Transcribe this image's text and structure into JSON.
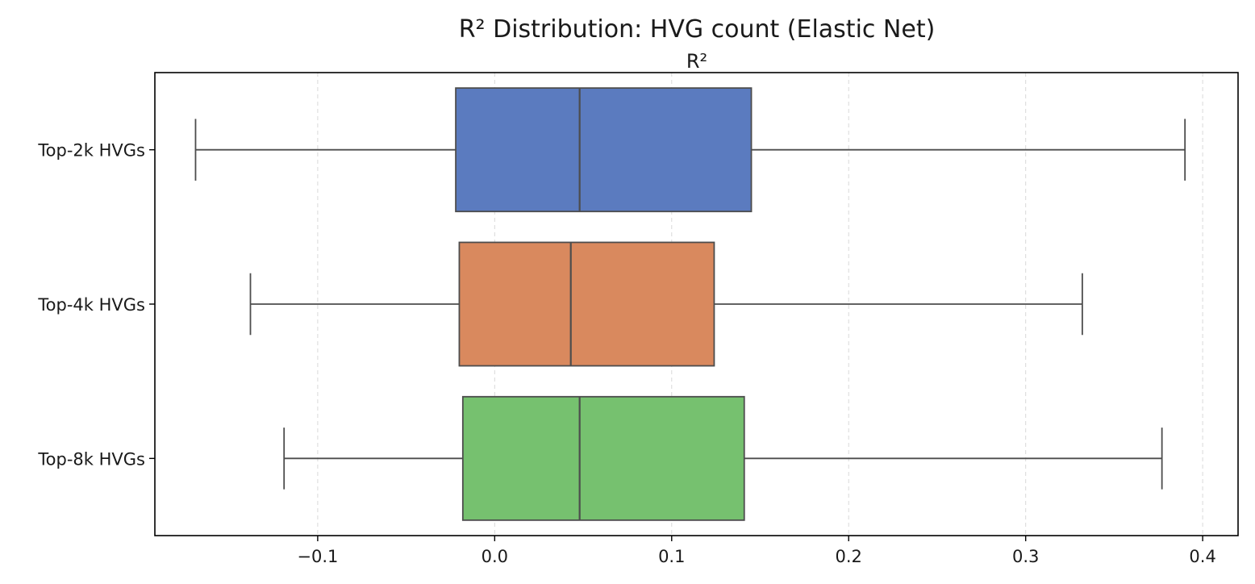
{
  "chart_data": {
    "type": "boxplot",
    "orientation": "horizontal",
    "title": "R² Distribution: HVG count (Elastic Net)",
    "xlabel": "R²",
    "ylabel": "",
    "xlim": [
      -0.192,
      0.42
    ],
    "xticks": [
      -0.1,
      0.0,
      0.1,
      0.2,
      0.3,
      0.4
    ],
    "xtick_labels": [
      "−0.1",
      "0.0",
      "0.1",
      "0.2",
      "0.3",
      "0.4"
    ],
    "grid": "x-dashed",
    "categories": [
      "Top-2k HVGs",
      "Top-4k HVGs",
      "Top-8k HVGs"
    ],
    "boxes": [
      {
        "category": "Top-2k HVGs",
        "whisker_low": -0.169,
        "q1": -0.022,
        "median": 0.048,
        "q3": 0.145,
        "whisker_high": 0.39,
        "color": "#5b7bbf"
      },
      {
        "category": "Top-4k HVGs",
        "whisker_low": -0.138,
        "q1": -0.02,
        "median": 0.043,
        "q3": 0.124,
        "whisker_high": 0.332,
        "color": "#d9895e"
      },
      {
        "category": "Top-8k HVGs",
        "whisker_low": -0.119,
        "q1": -0.018,
        "median": 0.048,
        "q3": 0.141,
        "whisker_high": 0.377,
        "color": "#76c16f"
      }
    ]
  }
}
